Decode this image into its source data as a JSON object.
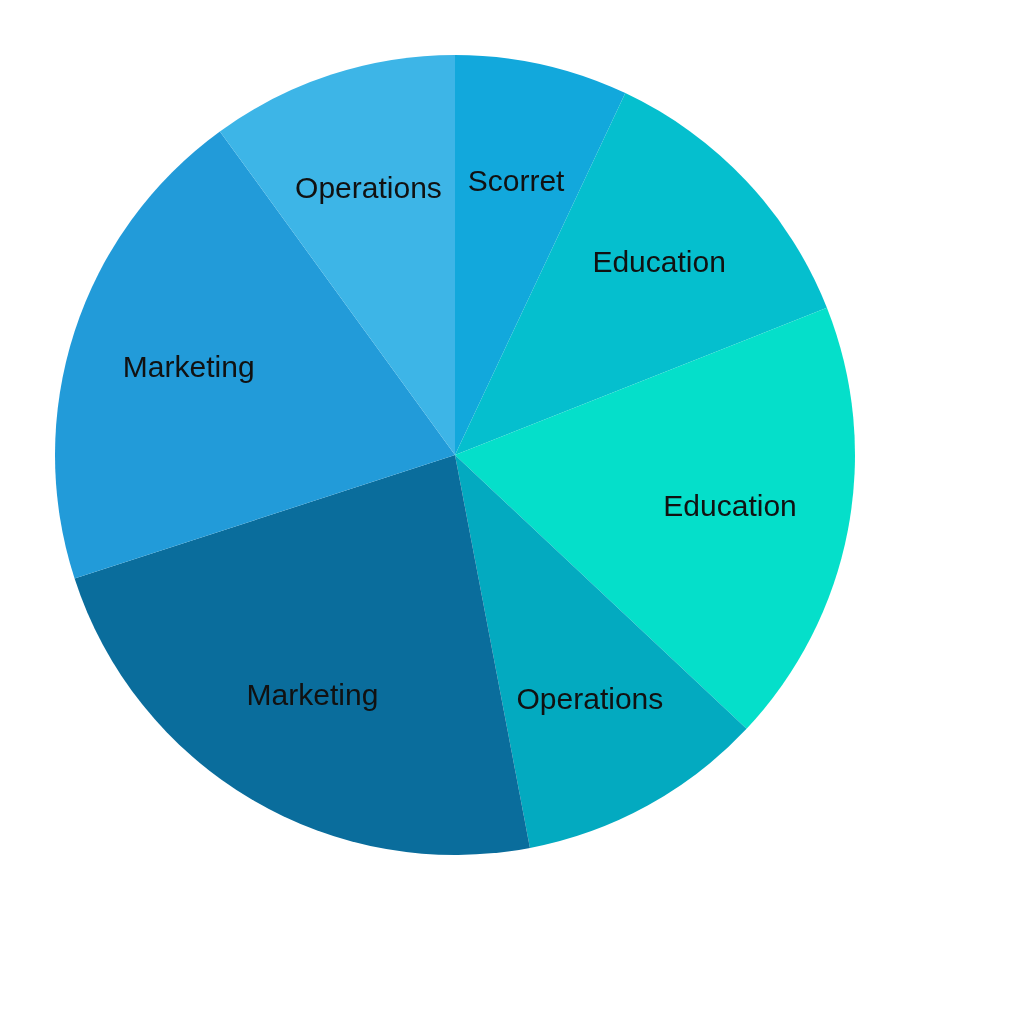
{
  "chart_data": {
    "type": "pie",
    "categories": [
      "Scorret",
      "Education",
      "Education",
      "Operations",
      "Marketing",
      "Marketing",
      "Operations"
    ],
    "values": [
      7,
      12,
      18,
      10,
      23,
      20,
      10
    ],
    "colors": [
      "#12a8dc",
      "#05bfce",
      "#05dfca",
      "#03aac0",
      "#0a6d9c",
      "#229bd9",
      "#3db5e7"
    ]
  }
}
